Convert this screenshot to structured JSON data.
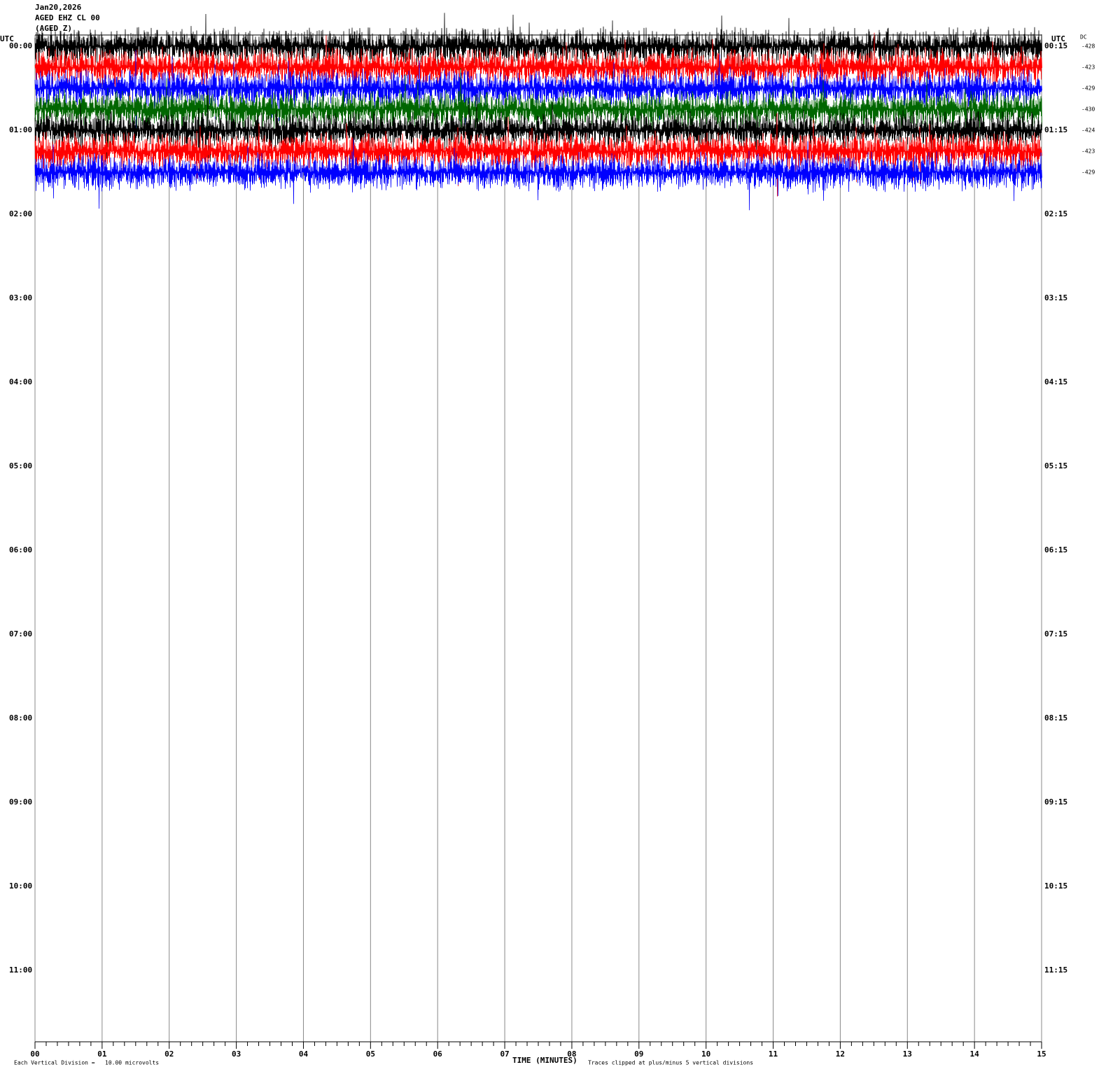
{
  "header": {
    "date": "Jan20,2026",
    "station": "AGED EHZ CL 00",
    "label": "(AGED Z)"
  },
  "utc_left": "UTC",
  "utc_right": "UTC",
  "dc_label": "DC",
  "rows_left": [
    "00:00",
    "01:00",
    "02:00",
    "03:00",
    "04:00",
    "05:00",
    "06:00",
    "07:00",
    "08:00",
    "09:00",
    "10:00",
    "11:00"
  ],
  "rows_right": [
    "00:15",
    "01:15",
    "02:15",
    "03:15",
    "04:15",
    "05:15",
    "06:15",
    "07:15",
    "08:15",
    "09:15",
    "10:15",
    "11:15"
  ],
  "dc_values": [
    -428,
    -423,
    -429,
    -430,
    -424,
    -423,
    -429
  ],
  "x_axis": {
    "ticks": [
      "00",
      "01",
      "02",
      "03",
      "04",
      "05",
      "06",
      "07",
      "08",
      "09",
      "10",
      "11",
      "12",
      "13",
      "14",
      "15"
    ],
    "title": "TIME (MINUTES)"
  },
  "footer": {
    "division": "Each Vertical Division =   10.00 microvolts",
    "clip": "Traces clipped at plus/minus 5 vertical divisions"
  }
}
